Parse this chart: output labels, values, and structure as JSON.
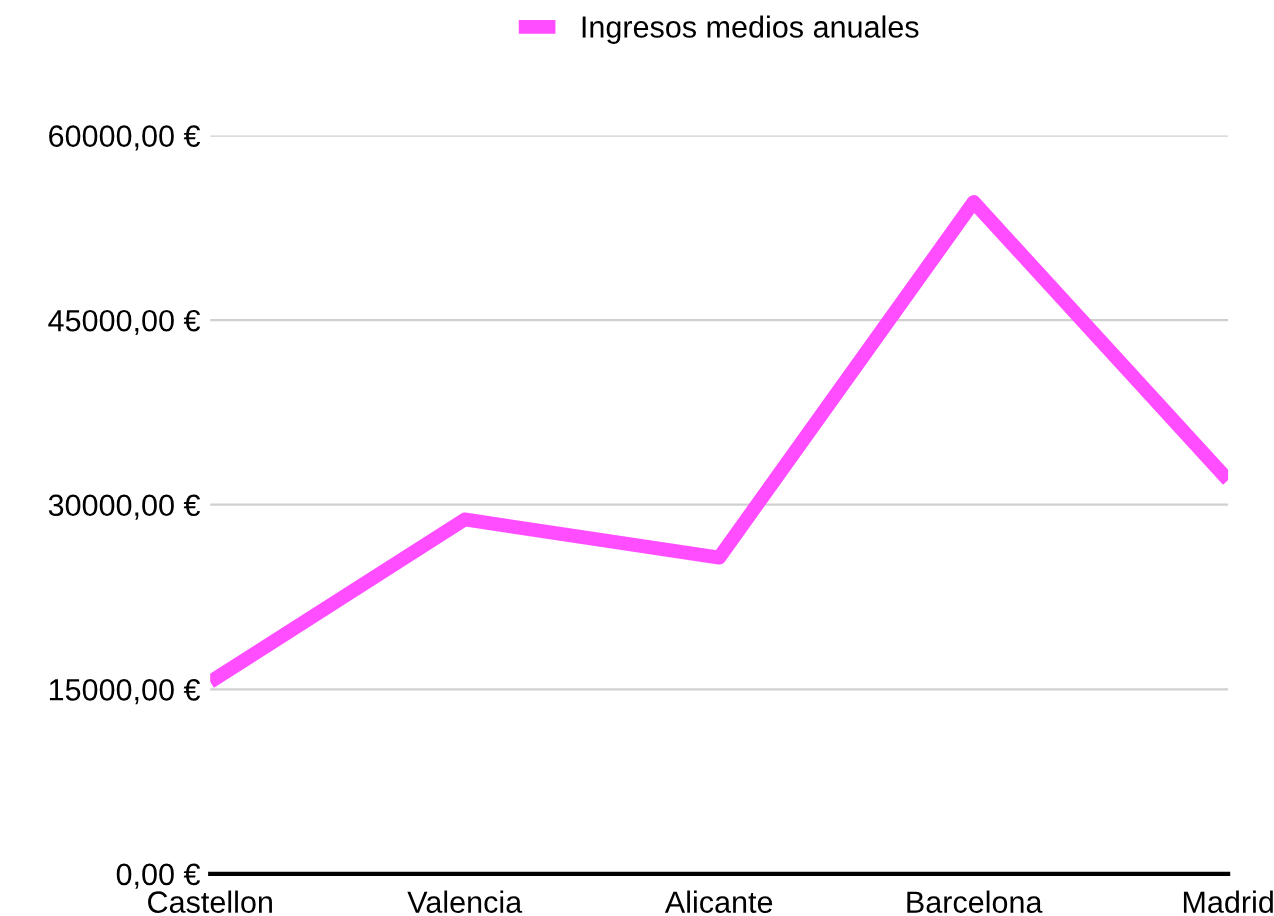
{
  "chart_data": {
    "type": "line",
    "categories": [
      "Castellon",
      "Valencia",
      "Alicante",
      "Barcelona",
      "Madrid"
    ],
    "series": [
      {
        "name": "Ingresos medios anuales",
        "color": "#ff4dff",
        "values": [
          15600,
          28800,
          25700,
          54600,
          32000
        ]
      }
    ],
    "ylim": [
      0,
      60000
    ],
    "yticks": [
      {
        "value": 0,
        "label": "0,00 €"
      },
      {
        "value": 15000,
        "label": "15000,00 €"
      },
      {
        "value": 30000,
        "label": "30000,00 €"
      },
      {
        "value": 45000,
        "label": "45000,00 €"
      },
      {
        "value": 60000,
        "label": "60000,00 €"
      }
    ],
    "grid": "y",
    "legend": "top",
    "marker": "none",
    "line_style": "solid"
  }
}
